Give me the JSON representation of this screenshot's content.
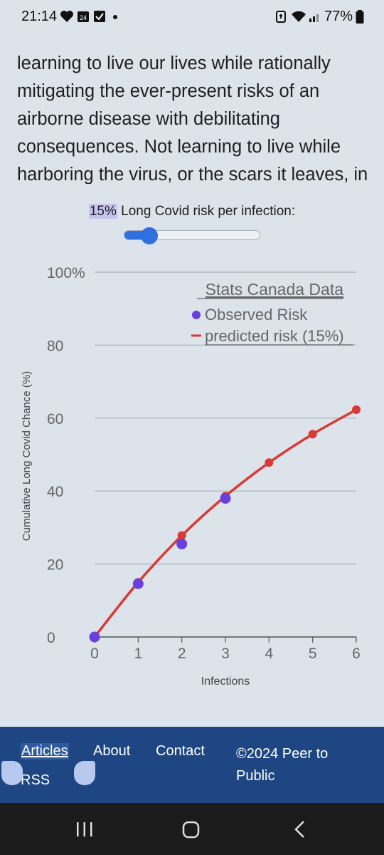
{
  "status_bar": {
    "time": "21:14",
    "calendar_day": "24",
    "battery_percent": "77%"
  },
  "article": {
    "paragraph": "learning to live our lives while rationally mitigating the ever-present risks of an airborne disease with debilitating consequences. Not learning to live while harboring the virus, or the scars it leaves, in our bodies."
  },
  "slider": {
    "value_label": "15%",
    "label_suffix": " Long Covid risk per infection:",
    "value_fraction": 0.15
  },
  "chart_data": {
    "type": "line",
    "title": "Stats Canada Data",
    "xlabel": "Infections",
    "ylabel": "Cumulative Long Covid Chance (%)",
    "xlim": [
      0,
      6
    ],
    "ylim": [
      0,
      100
    ],
    "x_ticks": [
      "0",
      "1",
      "2",
      "3",
      "4",
      "5",
      "6"
    ],
    "y_ticks": [
      "0",
      "20",
      "40",
      "60",
      "80",
      "100%"
    ],
    "grid": true,
    "legend_position": "top-right",
    "series": [
      {
        "name": "Observed Risk",
        "kind": "scatter",
        "color": "#6a3fe0",
        "points": [
          [
            0,
            0
          ],
          [
            1,
            14.6
          ],
          [
            2,
            25.5
          ],
          [
            3,
            38
          ]
        ]
      },
      {
        "name": "predicted risk (15%)",
        "kind": "line",
        "color": "#d93a35",
        "points": [
          [
            0,
            0
          ],
          [
            1,
            15
          ],
          [
            2,
            27.8
          ],
          [
            3,
            38.6
          ],
          [
            4,
            47.8
          ],
          [
            5,
            55.6
          ],
          [
            6,
            62.3
          ]
        ]
      }
    ]
  },
  "footer": {
    "links": {
      "articles": "Articles",
      "about": "About",
      "contact": "Contact",
      "rss": "RSS"
    },
    "copyright": "©2024 Peer to Public"
  },
  "colors": {
    "page_bg": "#dce3ea",
    "footer_bg": "#1e4682",
    "slider_accent": "#2f6fe0"
  }
}
